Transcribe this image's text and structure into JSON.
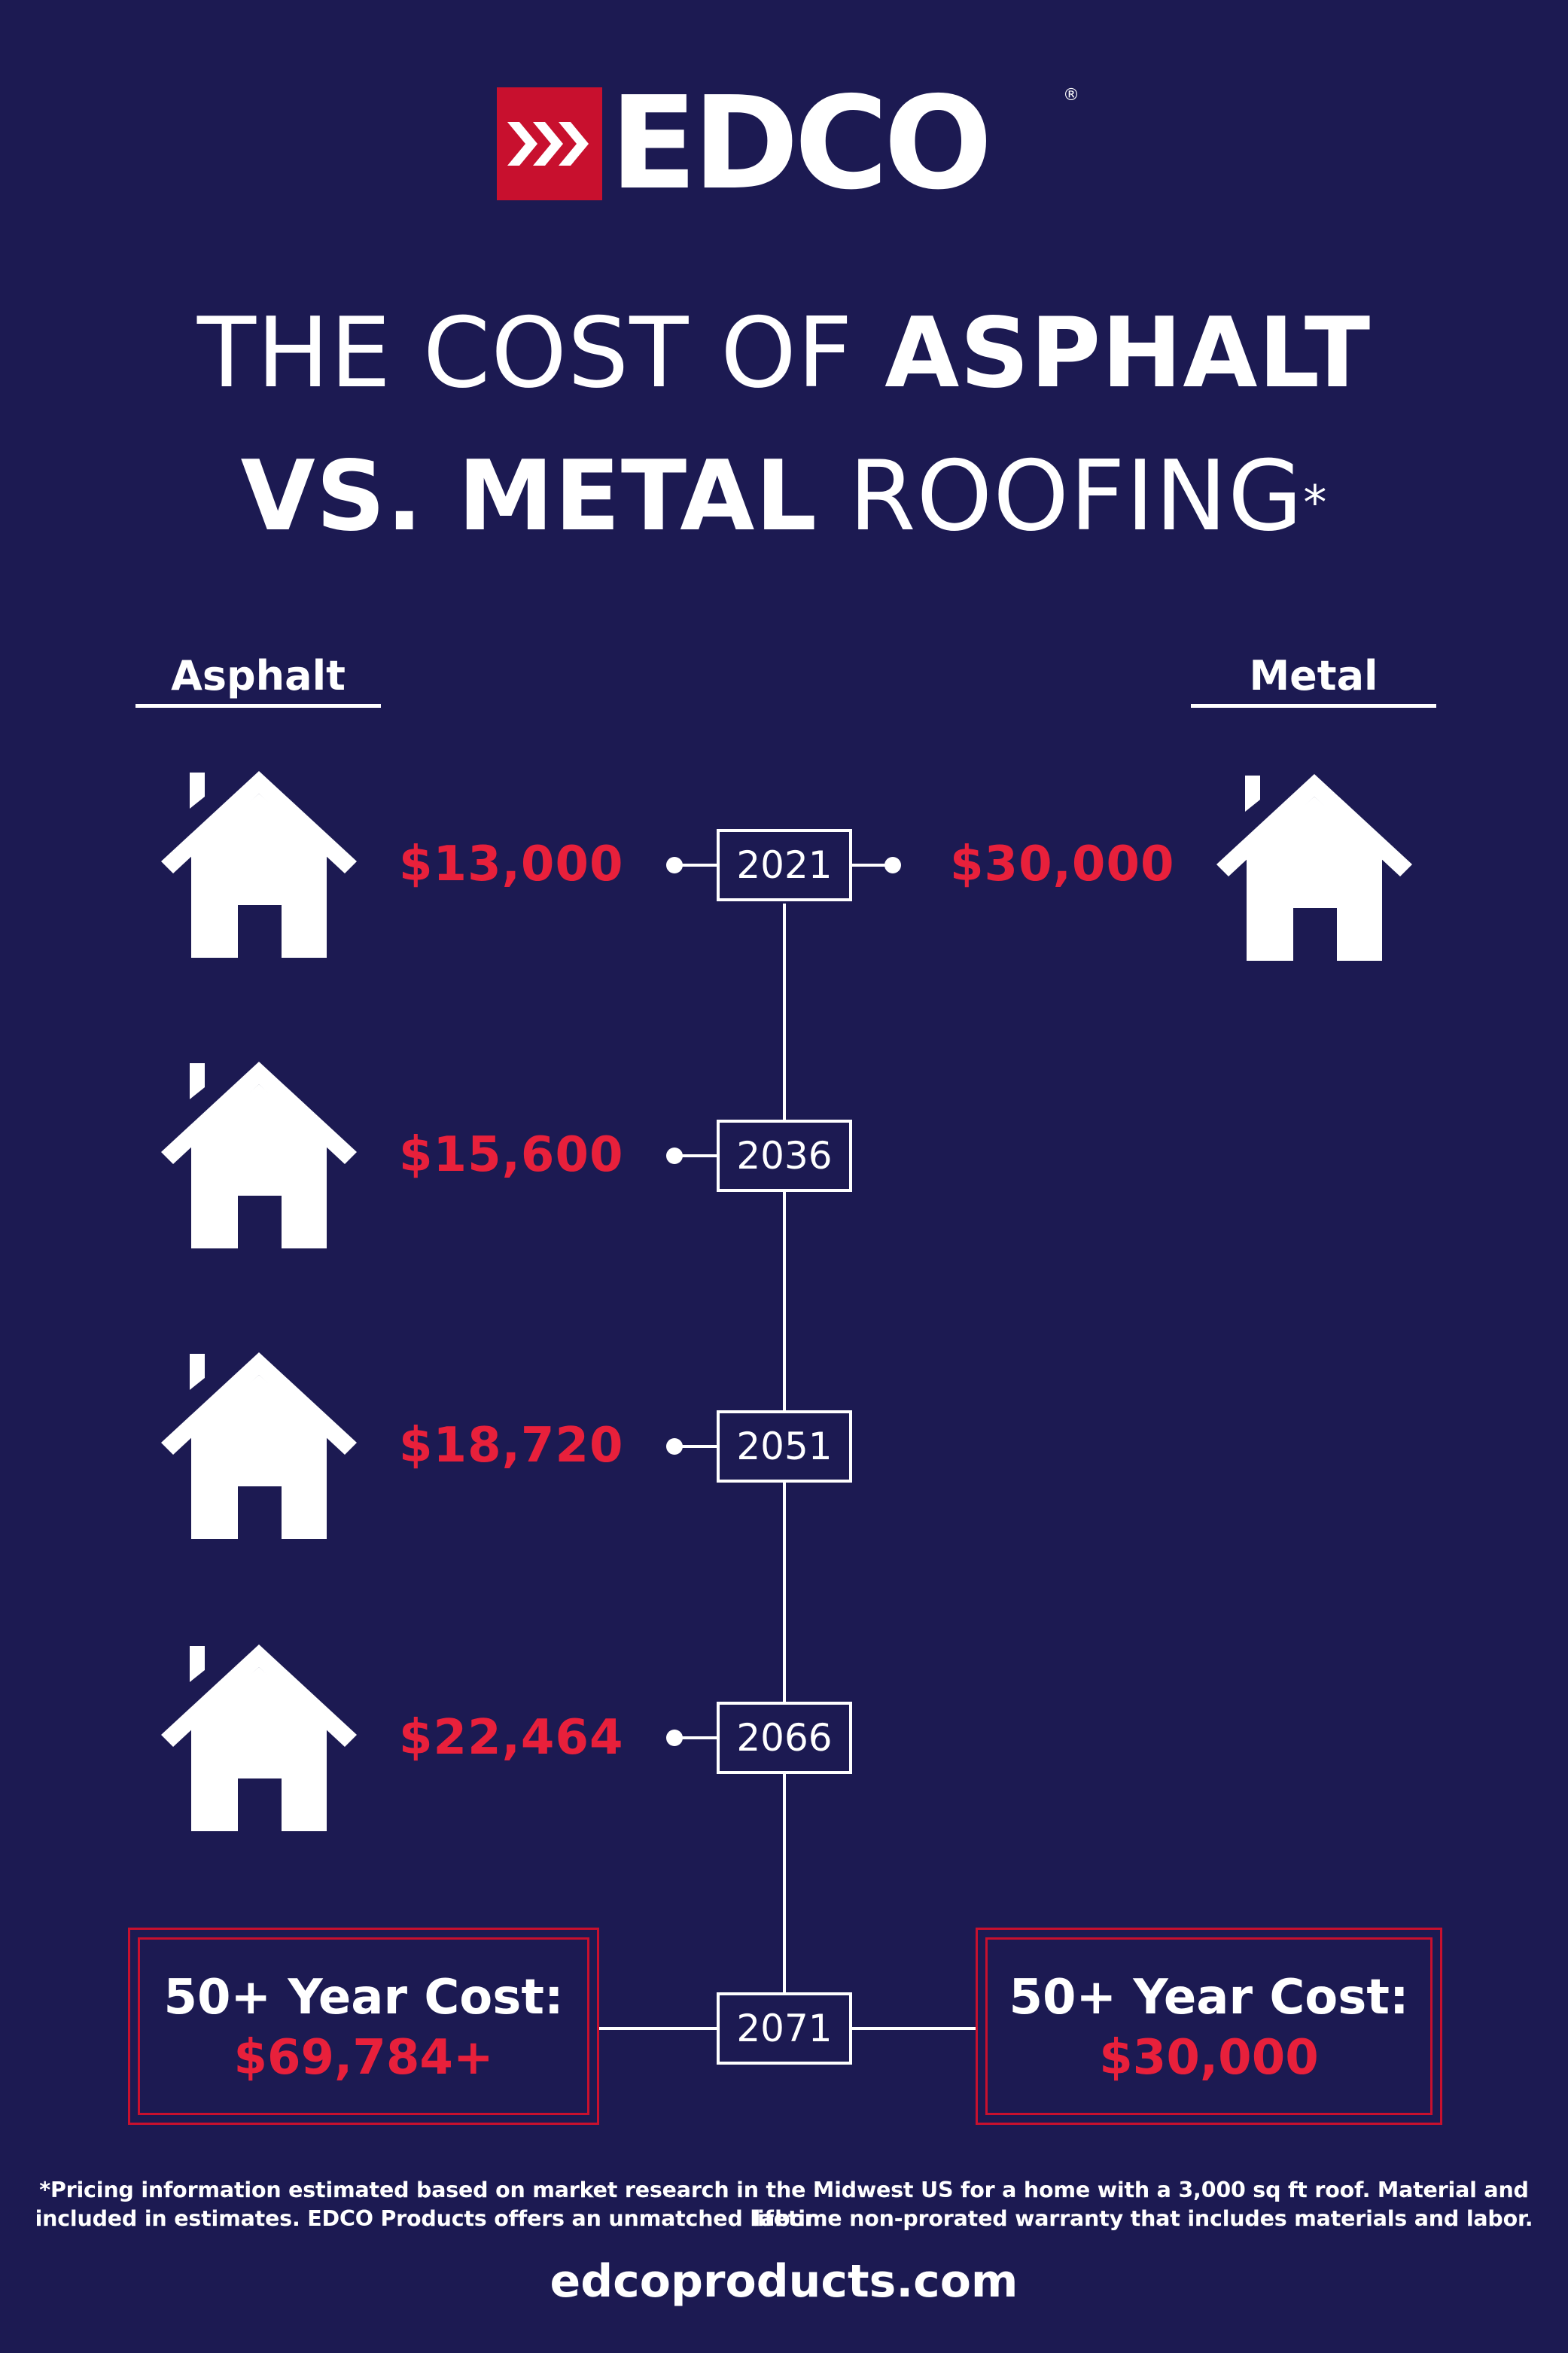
{
  "brand": {
    "name": "EDCO",
    "reg_mark": "®",
    "colors": {
      "background": "#1c1a52",
      "accent": "#c8102e",
      "price": "#e8203b",
      "text": "#ffffff"
    }
  },
  "headline": {
    "line1_light": "THE COST OF ",
    "line1_bold": "ASPHALT",
    "line2_bold": "VS. METAL",
    "line2_light": " ROOFING",
    "asterisk": "*"
  },
  "columns": {
    "left": "Asphalt",
    "right": "Metal"
  },
  "timeline": [
    {
      "year": "2021",
      "asphalt": "$13,000",
      "metal": "$30,000"
    },
    {
      "year": "2036",
      "asphalt": "$15,600"
    },
    {
      "year": "2051",
      "asphalt": "$18,720"
    },
    {
      "year": "2066",
      "asphalt": "$22,464"
    },
    {
      "year": "2071"
    }
  ],
  "summary": {
    "asphalt": {
      "title": "50+ Year Cost:",
      "value": "$69,784+"
    },
    "metal": {
      "title": "50+ Year Cost:",
      "value": "$30,000"
    }
  },
  "footnote": {
    "line1": "*Pricing information estimated based on market research in the Midwest US for a home with a 3,000 sq ft roof. Material and labor",
    "line2": "included in estimates. EDCO Products offers an unmatched lifetime non-prorated warranty that includes materials and labor."
  },
  "website": "edcoproducts.com",
  "icons": [
    "house-icon",
    "chevron-logo-icon"
  ]
}
